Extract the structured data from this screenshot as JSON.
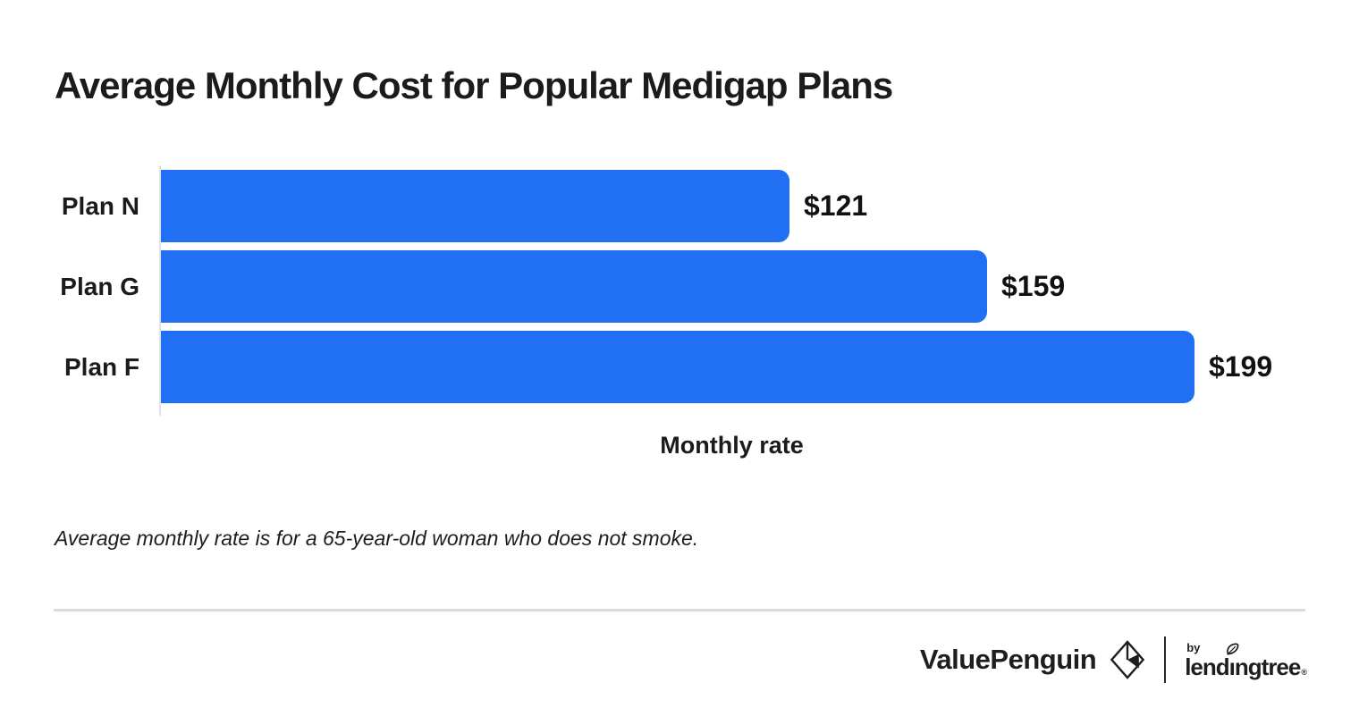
{
  "page": {
    "background": "#ffffff"
  },
  "header": {
    "title": "Average Monthly Cost for Popular Medigap Plans"
  },
  "chart_data": {
    "type": "bar",
    "orientation": "horizontal",
    "title": "Average Monthly Cost for Popular Medigap Plans",
    "categories": [
      "Plan N",
      "Plan G",
      "Plan F"
    ],
    "values": [
      121,
      159,
      199
    ],
    "value_labels": [
      "$121",
      "$159",
      "$199"
    ],
    "xlabel": "Monthly rate",
    "ylabel": "",
    "xlim": [
      0,
      199
    ],
    "grid": false,
    "legend": false,
    "bar_color": "#2170F4",
    "axis_line_color": "#e2e2e2"
  },
  "footnote": {
    "text": "Average monthly rate is for a 65-year-old woman who does not smoke."
  },
  "footer": {
    "valuepenguin_label": "ValuePenguin",
    "penguin_icon": "valuepenguin-penguin-logo",
    "by_label": "by",
    "lendingtree_label": "lendingtree",
    "lendingtree_pre": "lend",
    "lendingtree_i": "ı",
    "lendingtree_post": "ngtree",
    "trademark": "®",
    "leaf_icon": "lendingtree-leaf"
  },
  "colors": {
    "bar_blue": "#2170F4",
    "text_dark": "#1b1b1b",
    "axis_gray": "#e2e2e2",
    "divider_gray": "#dcdcdc"
  }
}
